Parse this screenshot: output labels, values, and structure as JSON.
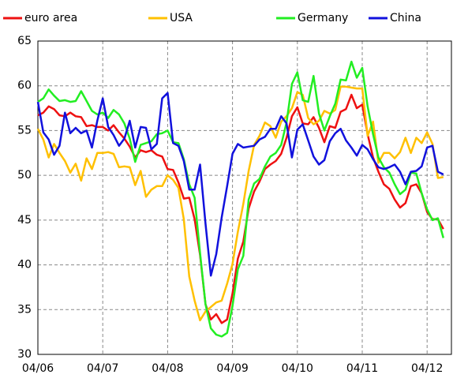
{
  "chart_data": {
    "type": "line",
    "legend": "top",
    "grid": true,
    "ylim": [
      30,
      65
    ],
    "yticks": [
      30,
      35,
      40,
      45,
      50,
      55,
      60,
      65
    ],
    "categories": [
      "04/06",
      null,
      null,
      null,
      null,
      null,
      null,
      null,
      null,
      null,
      null,
      null,
      "04/07",
      null,
      null,
      null,
      null,
      null,
      null,
      null,
      null,
      null,
      null,
      null,
      "04/08",
      null,
      null,
      null,
      null,
      null,
      null,
      null,
      null,
      null,
      null,
      null,
      "04/09",
      null,
      null,
      null,
      null,
      null,
      null,
      null,
      null,
      null,
      null,
      null,
      "04/10",
      null,
      null,
      null,
      null,
      null,
      null,
      null,
      null,
      null,
      null,
      null,
      "04/11",
      null,
      null,
      null,
      null,
      null,
      null,
      null,
      null,
      null,
      null,
      null,
      "04/12",
      null,
      null,
      null
    ],
    "series": [
      {
        "name": "euro area",
        "color": "#ee1111",
        "values": [
          56.7,
          57.0,
          57.7,
          57.4,
          56.7,
          56.6,
          57.0,
          56.6,
          56.5,
          55.5,
          55.6,
          55.4,
          55.4,
          55.0,
          55.6,
          54.8,
          54.1,
          53.2,
          52.0,
          52.8,
          52.6,
          52.8,
          52.3,
          52.1,
          50.7,
          50.6,
          49.2,
          47.4,
          47.5,
          45.1,
          41.1,
          35.6,
          33.9,
          34.5,
          33.5,
          33.9,
          36.8,
          40.7,
          42.6,
          46.3,
          48.2,
          49.3,
          50.7,
          51.2,
          51.6,
          52.4,
          54.2,
          56.6,
          57.6,
          55.8,
          55.7,
          56.5,
          55.3,
          53.7,
          55.5,
          55.3,
          57.1,
          57.4,
          59.0,
          57.5,
          57.9,
          54.6,
          52.0,
          50.4,
          49.0,
          48.5,
          47.3,
          46.4,
          46.9,
          48.8,
          49.0,
          48.0,
          45.9,
          45.1,
          45.1,
          44.0
        ]
      },
      {
        "name": "USA",
        "color": "#ffc000",
        "values": [
          55.2,
          54.0,
          52.0,
          53.5,
          52.5,
          51.6,
          50.3,
          51.3,
          49.4,
          51.9,
          50.7,
          52.5,
          52.5,
          52.6,
          52.4,
          50.9,
          51.0,
          50.9,
          48.9,
          50.5,
          47.6,
          48.4,
          48.8,
          48.8,
          50.0,
          49.5,
          48.6,
          45.1,
          38.7,
          36.0,
          33.8,
          34.8,
          35.3,
          35.8,
          36.0,
          37.9,
          40.1,
          43.7,
          46.8,
          50.5,
          53.4,
          54.4,
          55.9,
          55.5,
          54.2,
          56.0,
          56.6,
          57.5,
          59.3,
          59.0,
          56.4,
          55.7,
          56.1,
          57.2,
          56.9,
          57.3,
          59.9,
          59.9,
          59.8,
          59.7,
          59.7,
          54.4,
          56.0,
          51.4,
          52.5,
          52.5,
          51.9,
          52.6,
          54.2,
          52.5,
          54.2,
          53.6,
          54.8,
          53.5,
          49.7,
          49.8
        ]
      },
      {
        "name": "Germany",
        "color": "#22ee22",
        "values": [
          58.2,
          58.6,
          59.6,
          58.9,
          58.3,
          58.4,
          58.2,
          58.3,
          59.4,
          58.3,
          57.2,
          56.8,
          57.0,
          56.4,
          57.3,
          56.8,
          55.8,
          54.1,
          51.5,
          53.4,
          53.6,
          53.8,
          54.6,
          54.7,
          55.0,
          53.7,
          53.6,
          51.8,
          49.0,
          47.5,
          41.3,
          35.6,
          32.9,
          32.2,
          32.0,
          32.4,
          35.4,
          39.5,
          41.0,
          47.3,
          49.1,
          49.6,
          51.0,
          52.1,
          52.5,
          53.4,
          55.9,
          60.2,
          61.5,
          58.4,
          58.2,
          61.1,
          56.9,
          55.0,
          56.6,
          58.0,
          60.7,
          60.6,
          62.7,
          60.9,
          62.0,
          57.7,
          54.6,
          52.0,
          50.9,
          50.3,
          49.0,
          47.9,
          48.4,
          50.3,
          50.2,
          48.0,
          46.2,
          45.0,
          45.2,
          43.0
        ]
      },
      {
        "name": "China",
        "color": "#1111dd",
        "values": [
          58.2,
          54.8,
          54.0,
          52.3,
          53.3,
          57.0,
          54.7,
          55.3,
          54.7,
          55.0,
          53.1,
          56.1,
          58.6,
          55.4,
          54.5,
          53.3,
          54.1,
          56.1,
          53.1,
          55.4,
          55.3,
          52.9,
          53.5,
          58.6,
          59.2,
          53.6,
          53.3,
          51.6,
          48.4,
          48.4,
          51.2,
          44.6,
          38.8,
          41.2,
          45.3,
          48.8,
          52.4,
          53.5,
          53.1,
          53.2,
          53.3,
          54.0,
          54.3,
          55.2,
          55.2,
          56.6,
          55.8,
          52.0,
          55.1,
          55.7,
          53.9,
          52.1,
          51.2,
          51.7,
          53.8,
          54.7,
          55.2,
          53.9,
          53.1,
          52.2,
          53.4,
          52.9,
          51.8,
          50.9,
          50.7,
          50.9,
          51.2,
          50.4,
          49.0,
          50.4,
          50.5,
          51.0,
          53.1,
          53.3,
          50.4,
          50.1
        ]
      }
    ]
  }
}
